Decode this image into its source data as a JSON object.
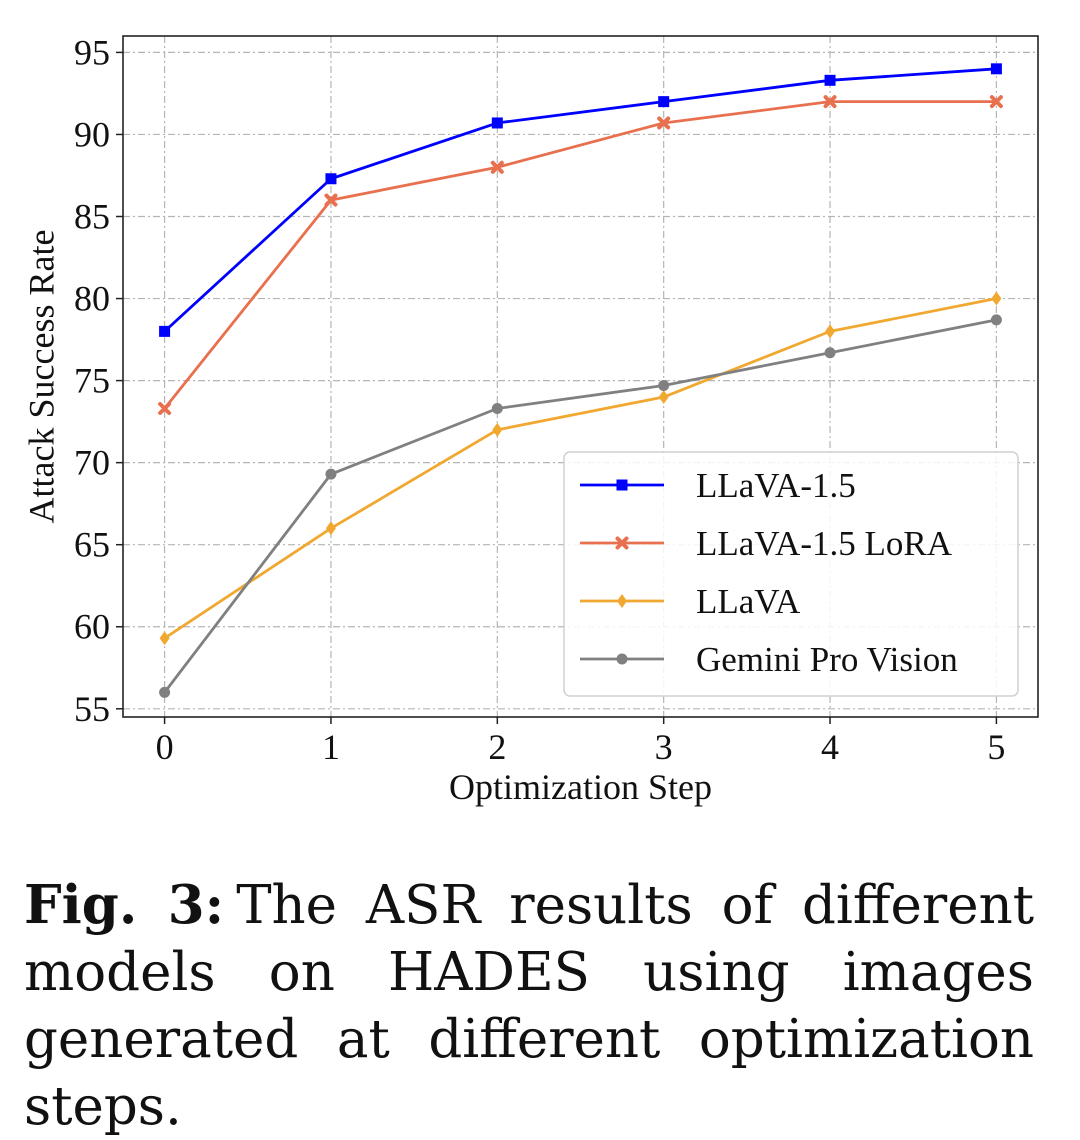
{
  "chart_data": {
    "type": "line",
    "title": "",
    "xlabel": "Optimization Step",
    "ylabel": "Attack Success Rate",
    "x": [
      0,
      1,
      2,
      3,
      4,
      5
    ],
    "xticks": [
      "0",
      "1",
      "2",
      "3",
      "4",
      "5"
    ],
    "yticks": [
      "55",
      "60",
      "65",
      "70",
      "75",
      "80",
      "85",
      "90",
      "95"
    ],
    "xlim": [
      -0.25,
      5.25
    ],
    "ylim": [
      54.5,
      96
    ],
    "grid": true,
    "legend_position": "bottom-right",
    "series": [
      {
        "name": "LLaVA-1.5",
        "marker": "square",
        "color": "#0000ff",
        "values": [
          78.0,
          87.3,
          90.7,
          92.0,
          93.3,
          94.0
        ]
      },
      {
        "name": "LLaVA-1.5 LoRA",
        "marker": "x",
        "color": "#e8704f",
        "values": [
          73.3,
          86.0,
          88.0,
          90.7,
          92.0,
          92.0
        ]
      },
      {
        "name": "LLaVA",
        "marker": "diamond",
        "color": "#f0a830",
        "values": [
          59.3,
          66.0,
          72.0,
          74.0,
          78.0,
          80.0
        ]
      },
      {
        "name": "Gemini Pro Vision",
        "marker": "circle",
        "color": "#808080",
        "values": [
          56.0,
          69.3,
          73.3,
          74.7,
          76.7,
          78.7
        ]
      }
    ]
  },
  "caption": {
    "label": "Fig. 3:",
    "text": "The ASR results of different models on HADES using images generated at different optimization steps."
  }
}
